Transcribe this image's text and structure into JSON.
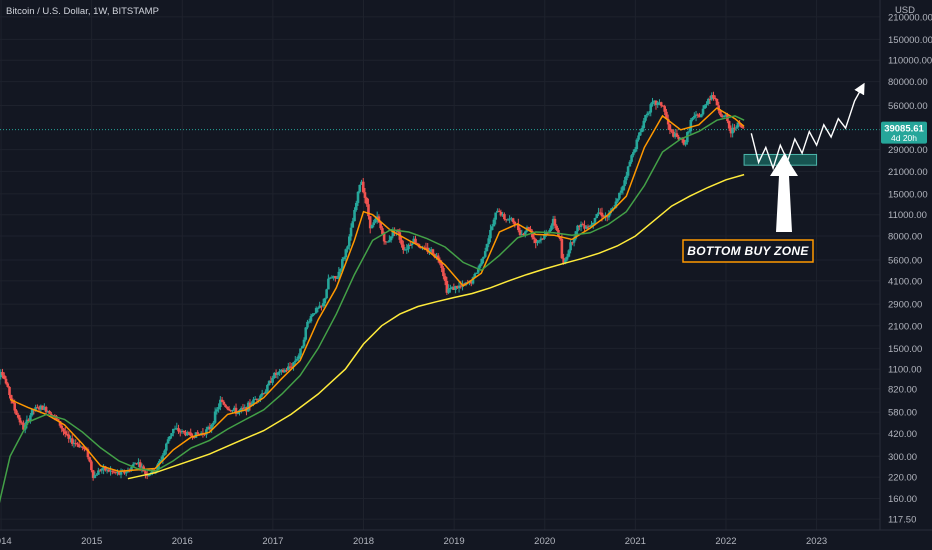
{
  "header": {
    "title": "Bitcoin / U.S. Dollar, 1W, BITSTAMP",
    "currency": "USD"
  },
  "price_label": {
    "value": "39085.61",
    "countdown": "4d 20h",
    "color": "#26a69a"
  },
  "colors": {
    "background": "#131722",
    "up_candle": "#26a69a",
    "down_candle": "#ef5350",
    "ma_fast": "#ff9800",
    "ma_mid": "#43a047",
    "ma_slow": "#ffeb3b",
    "buy_zone": "#1a6a62",
    "annotation_border": "#ff9800"
  },
  "annotation": {
    "label": "BOTTOM BUY ZONE",
    "icon": "up-arrow-icon"
  },
  "chart_data": {
    "type": "candlestick",
    "title": "Bitcoin / U.S. Dollar, 1W, BITSTAMP",
    "y_scale": "log",
    "ylim": [
      100,
      270000
    ],
    "y_ticks": [
      "210000.00",
      "150000.00",
      "110000.00",
      "80000.00",
      "56000.00",
      "39085.61",
      "29000.00",
      "21000.00",
      "15000.00",
      "11000.00",
      "8000.00",
      "5600.00",
      "4100.00",
      "2900.00",
      "2100.00",
      "1500.00",
      "1100.00",
      "820.00",
      "580.00",
      "420.00",
      "300.00",
      "220.00",
      "160.00",
      "117.50"
    ],
    "x_ticks": [
      "2014",
      "2015",
      "2016",
      "2017",
      "2018",
      "2019",
      "2020",
      "2021",
      "2022",
      "2023"
    ],
    "xlim": [
      2013.9,
      2023.7
    ],
    "price_path": [
      [
        2013.92,
        130
      ],
      [
        2013.96,
        950
      ],
      [
        2014.0,
        1100
      ],
      [
        2014.08,
        800
      ],
      [
        2014.15,
        600
      ],
      [
        2014.25,
        450
      ],
      [
        2014.35,
        600
      ],
      [
        2014.45,
        620
      ],
      [
        2014.55,
        580
      ],
      [
        2014.65,
        480
      ],
      [
        2014.75,
        380
      ],
      [
        2014.85,
        360
      ],
      [
        2014.95,
        320
      ],
      [
        2015.02,
        220
      ],
      [
        2015.1,
        250
      ],
      [
        2015.2,
        240
      ],
      [
        2015.3,
        230
      ],
      [
        2015.4,
        240
      ],
      [
        2015.5,
        280
      ],
      [
        2015.6,
        230
      ],
      [
        2015.7,
        240
      ],
      [
        2015.8,
        320
      ],
      [
        2015.85,
        400
      ],
      [
        2015.9,
        450
      ],
      [
        2016.0,
        430
      ],
      [
        2016.1,
        410
      ],
      [
        2016.2,
        420
      ],
      [
        2016.3,
        450
      ],
      [
        2016.42,
        680
      ],
      [
        2016.5,
        620
      ],
      [
        2016.6,
        580
      ],
      [
        2016.7,
        610
      ],
      [
        2016.8,
        700
      ],
      [
        2016.92,
        800
      ],
      [
        2017.0,
        1000
      ],
      [
        2017.1,
        1050
      ],
      [
        2017.2,
        1150
      ],
      [
        2017.3,
        1400
      ],
      [
        2017.38,
        2200
      ],
      [
        2017.45,
        2600
      ],
      [
        2017.55,
        2800
      ],
      [
        2017.62,
        4300
      ],
      [
        2017.7,
        4200
      ],
      [
        2017.78,
        5800
      ],
      [
        2017.85,
        8000
      ],
      [
        2017.93,
        14000
      ],
      [
        2017.97,
        19000
      ],
      [
        2018.02,
        14000
      ],
      [
        2018.08,
        9000
      ],
      [
        2018.15,
        10500
      ],
      [
        2018.25,
        7000
      ],
      [
        2018.35,
        9200
      ],
      [
        2018.45,
        6500
      ],
      [
        2018.55,
        7600
      ],
      [
        2018.65,
        6600
      ],
      [
        2018.75,
        6400
      ],
      [
        2018.85,
        5500
      ],
      [
        2018.92,
        3600
      ],
      [
        2019.0,
        3700
      ],
      [
        2019.1,
        3800
      ],
      [
        2019.2,
        4100
      ],
      [
        2019.3,
        5500
      ],
      [
        2019.4,
        8500
      ],
      [
        2019.48,
        12000
      ],
      [
        2019.55,
        10500
      ],
      [
        2019.65,
        10000
      ],
      [
        2019.75,
        8200
      ],
      [
        2019.82,
        9200
      ],
      [
        2019.9,
        7300
      ],
      [
        2020.0,
        8000
      ],
      [
        2020.1,
        10000
      ],
      [
        2020.17,
        7500
      ],
      [
        2020.2,
        5000
      ],
      [
        2020.28,
        7000
      ],
      [
        2020.38,
        9500
      ],
      [
        2020.5,
        9300
      ],
      [
        2020.58,
        11500
      ],
      [
        2020.7,
        10600
      ],
      [
        2020.8,
        13500
      ],
      [
        2020.88,
        18500
      ],
      [
        2020.98,
        29000
      ],
      [
        2021.05,
        37000
      ],
      [
        2021.12,
        50000
      ],
      [
        2021.2,
        58000
      ],
      [
        2021.3,
        57000
      ],
      [
        2021.38,
        38000
      ],
      [
        2021.45,
        35000
      ],
      [
        2021.55,
        32000
      ],
      [
        2021.62,
        46000
      ],
      [
        2021.72,
        48000
      ],
      [
        2021.8,
        62000
      ],
      [
        2021.85,
        66000
      ],
      [
        2021.9,
        57000
      ],
      [
        2021.95,
        48000
      ],
      [
        2022.0,
        47000
      ],
      [
        2022.05,
        37000
      ],
      [
        2022.12,
        43000
      ],
      [
        2022.2,
        39085
      ]
    ],
    "series": [
      {
        "name": "MA fast",
        "color": "#ff9800",
        "values": [
          [
            2014.1,
            700
          ],
          [
            2014.3,
            620
          ],
          [
            2014.5,
            560
          ],
          [
            2014.7,
            480
          ],
          [
            2014.9,
            360
          ],
          [
            2015.1,
            260
          ],
          [
            2015.3,
            240
          ],
          [
            2015.5,
            245
          ],
          [
            2015.7,
            250
          ],
          [
            2015.9,
            330
          ],
          [
            2016.1,
            400
          ],
          [
            2016.3,
            430
          ],
          [
            2016.5,
            560
          ],
          [
            2016.7,
            600
          ],
          [
            2016.9,
            720
          ],
          [
            2017.1,
            960
          ],
          [
            2017.3,
            1250
          ],
          [
            2017.5,
            2300
          ],
          [
            2017.7,
            3700
          ],
          [
            2017.9,
            7500
          ],
          [
            2018.0,
            11500
          ],
          [
            2018.1,
            11000
          ],
          [
            2018.3,
            8700
          ],
          [
            2018.5,
            7500
          ],
          [
            2018.7,
            6500
          ],
          [
            2018.9,
            5200
          ],
          [
            2019.1,
            3800
          ],
          [
            2019.3,
            4600
          ],
          [
            2019.5,
            8500
          ],
          [
            2019.7,
            9600
          ],
          [
            2019.9,
            8200
          ],
          [
            2020.1,
            8100
          ],
          [
            2020.3,
            7600
          ],
          [
            2020.5,
            9000
          ],
          [
            2020.7,
            11000
          ],
          [
            2020.9,
            14500
          ],
          [
            2021.1,
            30000
          ],
          [
            2021.3,
            48000
          ],
          [
            2021.5,
            39000
          ],
          [
            2021.7,
            42000
          ],
          [
            2021.9,
            54000
          ],
          [
            2022.1,
            46000
          ],
          [
            2022.2,
            41000
          ]
        ]
      },
      {
        "name": "MA mid",
        "color": "#43a047",
        "values": [
          [
            2013.92,
            105
          ],
          [
            2014.1,
            300
          ],
          [
            2014.3,
            500
          ],
          [
            2014.5,
            560
          ],
          [
            2014.7,
            520
          ],
          [
            2014.9,
            430
          ],
          [
            2015.1,
            340
          ],
          [
            2015.3,
            280
          ],
          [
            2015.5,
            250
          ],
          [
            2015.7,
            240
          ],
          [
            2015.9,
            280
          ],
          [
            2016.1,
            340
          ],
          [
            2016.3,
            380
          ],
          [
            2016.5,
            450
          ],
          [
            2016.7,
            520
          ],
          [
            2016.9,
            600
          ],
          [
            2017.1,
            760
          ],
          [
            2017.3,
            1000
          ],
          [
            2017.5,
            1500
          ],
          [
            2017.7,
            2500
          ],
          [
            2017.9,
            4500
          ],
          [
            2018.1,
            7500
          ],
          [
            2018.3,
            8800
          ],
          [
            2018.5,
            8500
          ],
          [
            2018.7,
            7700
          ],
          [
            2018.9,
            6800
          ],
          [
            2019.1,
            5400
          ],
          [
            2019.3,
            4800
          ],
          [
            2019.5,
            6000
          ],
          [
            2019.7,
            7800
          ],
          [
            2019.9,
            8500
          ],
          [
            2020.1,
            8400
          ],
          [
            2020.3,
            8100
          ],
          [
            2020.5,
            8400
          ],
          [
            2020.7,
            9500
          ],
          [
            2020.9,
            11500
          ],
          [
            2021.1,
            17000
          ],
          [
            2021.3,
            28000
          ],
          [
            2021.5,
            34000
          ],
          [
            2021.7,
            38000
          ],
          [
            2021.9,
            45000
          ],
          [
            2022.1,
            48000
          ],
          [
            2022.2,
            45000
          ]
        ]
      },
      {
        "name": "MA slow",
        "color": "#ffeb3b",
        "values": [
          [
            2015.4,
            215
          ],
          [
            2015.7,
            235
          ],
          [
            2016.0,
            270
          ],
          [
            2016.3,
            310
          ],
          [
            2016.6,
            370
          ],
          [
            2016.9,
            440
          ],
          [
            2017.2,
            560
          ],
          [
            2017.5,
            760
          ],
          [
            2017.8,
            1100
          ],
          [
            2018.0,
            1600
          ],
          [
            2018.2,
            2100
          ],
          [
            2018.4,
            2500
          ],
          [
            2018.6,
            2800
          ],
          [
            2018.8,
            3000
          ],
          [
            2019.0,
            3200
          ],
          [
            2019.2,
            3400
          ],
          [
            2019.4,
            3700
          ],
          [
            2019.6,
            4100
          ],
          [
            2019.8,
            4500
          ],
          [
            2020.0,
            4900
          ],
          [
            2020.2,
            5300
          ],
          [
            2020.4,
            5700
          ],
          [
            2020.6,
            6200
          ],
          [
            2020.8,
            6900
          ],
          [
            2021.0,
            8000
          ],
          [
            2021.2,
            10000
          ],
          [
            2021.4,
            12500
          ],
          [
            2021.6,
            14500
          ],
          [
            2021.8,
            16500
          ],
          [
            2022.0,
            18500
          ],
          [
            2022.2,
            20000
          ]
        ]
      },
      {
        "name": "projection",
        "color": "#ffffff",
        "values": [
          [
            2022.28,
            37000
          ],
          [
            2022.36,
            24000
          ],
          [
            2022.44,
            30000
          ],
          [
            2022.52,
            22000
          ],
          [
            2022.6,
            31000
          ],
          [
            2022.68,
            24500
          ],
          [
            2022.76,
            34000
          ],
          [
            2022.84,
            27500
          ],
          [
            2022.92,
            38000
          ],
          [
            2023.0,
            31000
          ],
          [
            2023.08,
            42000
          ],
          [
            2023.16,
            35000
          ],
          [
            2023.24,
            46000
          ],
          [
            2023.32,
            40000
          ],
          [
            2023.42,
            60000
          ],
          [
            2023.5,
            73000
          ]
        ]
      }
    ],
    "buy_zone": {
      "x_range": [
        2022.2,
        2023.0
      ],
      "y_range": [
        23000,
        27000
      ]
    },
    "last_price": 39085.61
  }
}
